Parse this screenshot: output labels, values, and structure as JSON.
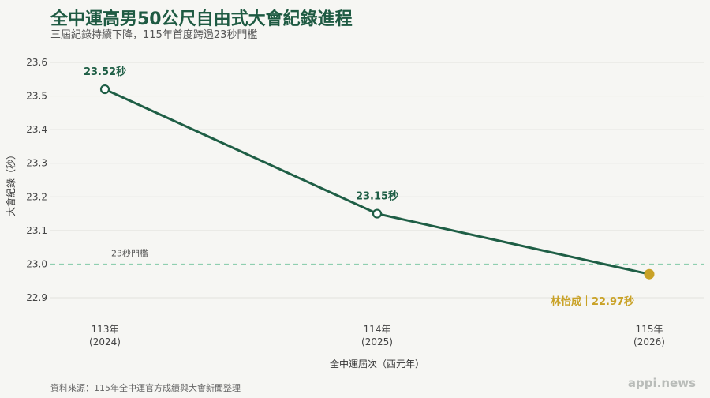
{
  "title": "全中運高男50公尺自由式大會紀錄進程",
  "subtitle": "三屆紀錄持續下降，115年首度跨過23秒門檻",
  "source": "資料來源：115年全中運官方成績與大會新聞整理",
  "brand": "appi.news",
  "colors": {
    "line": "#1e5e45",
    "highlight": "#c9a227",
    "threshold": "#8fcfb0",
    "grid": "#e2e2de"
  },
  "chart_data": {
    "type": "line",
    "title": "全中運高男50公尺自由式大會紀錄進程",
    "subtitle": "三屆紀錄持續下降，115年首度跨過23秒門檻",
    "xlabel": "全中運屆次（西元年）",
    "ylabel": "大會紀錄（秒）",
    "categories": [
      {
        "line1": "113年",
        "line2": "(2024)"
      },
      {
        "line1": "114年",
        "line2": "(2025)"
      },
      {
        "line1": "115年",
        "line2": "(2026)"
      }
    ],
    "values": [
      23.52,
      23.15,
      22.97
    ],
    "data_labels": [
      "23.52秒",
      "23.15秒",
      "林怡成｜22.97秒"
    ],
    "ylim": [
      22.85,
      23.62
    ],
    "yticks": [
      "22.9",
      "23.0",
      "23.1",
      "23.2",
      "23.3",
      "23.4",
      "23.5",
      "23.6"
    ],
    "threshold": {
      "value": 23.0,
      "label": "23秒門檻"
    },
    "highlight_index": 2,
    "grid": true
  }
}
